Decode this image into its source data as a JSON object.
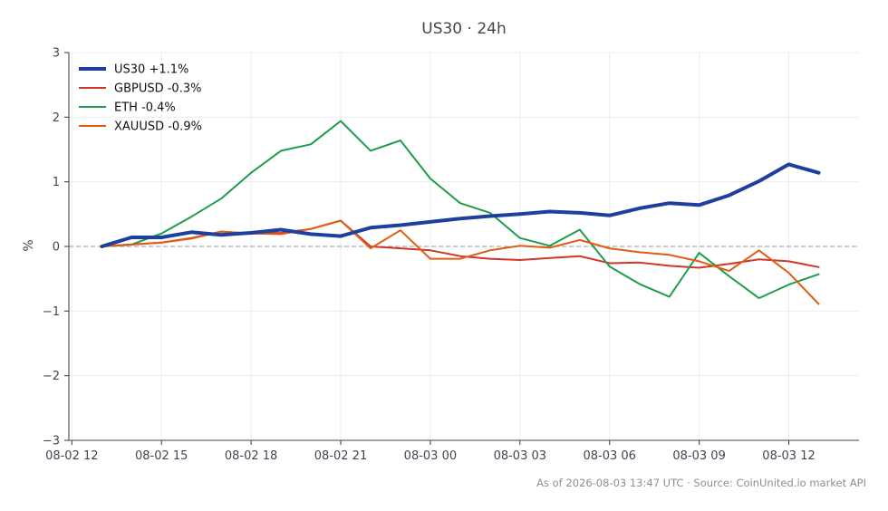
{
  "chart_data": {
    "type": "line",
    "title": "US30 · 24h",
    "xlabel": "",
    "ylabel": "%",
    "ylim": [
      -3,
      3
    ],
    "yticks": [
      -3,
      -2,
      -1,
      0,
      1,
      2,
      3
    ],
    "ytick_labels": [
      "−3",
      "−2",
      "−1",
      "0",
      "1",
      "2",
      "3"
    ],
    "xticks": [
      "08-02 12",
      "08-02 15",
      "08-02 18",
      "08-02 21",
      "08-03 00",
      "08-03 03",
      "08-03 06",
      "08-03 09",
      "08-03 12"
    ],
    "x_hours": [
      13,
      14,
      15,
      16,
      17,
      18,
      19,
      20,
      21,
      22,
      23,
      24,
      25,
      26,
      27,
      28,
      29,
      30,
      31,
      32,
      33,
      34,
      35,
      36,
      37
    ],
    "grid": true,
    "legend_position": "top-left",
    "baseline": 0,
    "series": [
      {
        "name": "US30 +1.1%",
        "color": "#1f3f9e",
        "emphasis": true,
        "values": [
          0.0,
          0.14,
          0.14,
          0.22,
          0.18,
          0.21,
          0.26,
          0.19,
          0.16,
          0.29,
          0.33,
          0.38,
          0.43,
          0.47,
          0.5,
          0.54,
          0.52,
          0.48,
          0.59,
          0.67,
          0.64,
          0.79,
          1.01,
          1.27,
          1.14
        ]
      },
      {
        "name": "GBPUSD -0.3%",
        "color": "#d1352b",
        "values": [
          0.0,
          0.03,
          0.06,
          0.13,
          0.23,
          0.2,
          0.21,
          0.27,
          0.4,
          0.0,
          -0.03,
          -0.06,
          -0.15,
          -0.19,
          -0.21,
          -0.18,
          -0.15,
          -0.26,
          -0.25,
          -0.3,
          -0.33,
          -0.27,
          -0.2,
          -0.23,
          -0.32
        ]
      },
      {
        "name": "ETH -0.4%",
        "color": "#1e9e4a",
        "values": [
          0.0,
          0.03,
          0.2,
          0.46,
          0.74,
          1.14,
          1.48,
          1.58,
          1.94,
          1.48,
          1.64,
          1.05,
          0.67,
          0.52,
          0.13,
          0.01,
          0.26,
          -0.31,
          -0.58,
          -0.78,
          -0.1,
          -0.46,
          -0.8,
          -0.59,
          -0.43
        ]
      },
      {
        "name": "XAUUSD -0.9%",
        "color": "#e05d12",
        "values": [
          0.0,
          0.03,
          0.06,
          0.12,
          0.23,
          0.2,
          0.19,
          0.27,
          0.4,
          -0.03,
          0.25,
          -0.19,
          -0.19,
          -0.06,
          0.01,
          -0.02,
          0.1,
          -0.03,
          -0.09,
          -0.13,
          -0.23,
          -0.38,
          -0.06,
          -0.41,
          -0.89
        ]
      }
    ],
    "footer": "As of 2026-08-03 13:47 UTC · Source: CoinUnited.io market API"
  }
}
